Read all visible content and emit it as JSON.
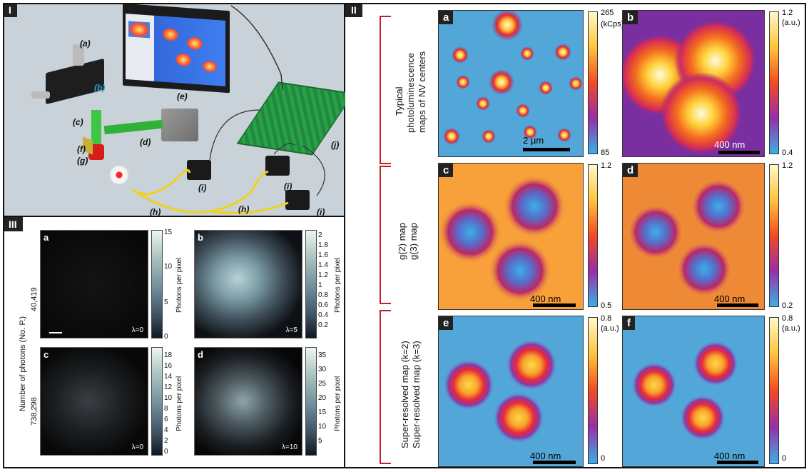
{
  "panels": {
    "p1": {
      "tag": "I",
      "labels": [
        "(a)",
        "(b)",
        "(c)",
        "(d)",
        "(e)",
        "(f)",
        "(g)",
        "(h)",
        "(h)",
        "(i)",
        "(i)",
        "(i)",
        "(j)"
      ]
    },
    "p2": {
      "tag": "II",
      "row_labels": {
        "r1": [
          "Typical",
          "photoluminescence",
          "maps of NV centers"
        ],
        "r2": [
          "g(2) map",
          "g(3) map"
        ],
        "r3": [
          "Super-resolved map (k=2)",
          "Super-resolved map (k=3)"
        ]
      },
      "tiles": {
        "a": {
          "letter": "a",
          "scale": "2 μm",
          "cb_top": "265",
          "cb_unit": "(kCps)",
          "cb_bottom": "85"
        },
        "b": {
          "letter": "b",
          "scale": "400 nm",
          "cb_top": "1.2",
          "cb_unit": "(a.u.)",
          "cb_bottom": "0.4"
        },
        "c": {
          "letter": "c",
          "scale": "400 nm",
          "cb_top": "1.2",
          "cb_bottom": "0.5"
        },
        "d": {
          "letter": "d",
          "scale": "400 nm",
          "cb_top": "1.2",
          "cb_bottom": "0.2"
        },
        "e": {
          "letter": "e",
          "scale": "400 nm",
          "cb_top": "0.8",
          "cb_unit": "(a.u.)",
          "cb_bottom": "0"
        },
        "f": {
          "letter": "f",
          "scale": "400 nm",
          "cb_top": "0.8",
          "cb_unit": "(a.u.)",
          "cb_bottom": "0"
        }
      }
    },
    "p3": {
      "tag": "III",
      "ylabel": "Number of photons (No. P.)",
      "rows": [
        "40,419",
        "738,298"
      ],
      "cb_label": "Photons per pixel",
      "tiles": {
        "a": {
          "letter": "a",
          "lambda": "λ=0",
          "ticks": [
            "15",
            "10",
            "5",
            "0"
          ]
        },
        "b": {
          "letter": "b",
          "lambda": "λ=5",
          "ticks": [
            "2",
            "1.8",
            "1.6",
            "1.4",
            "1.2",
            "1",
            "0.8",
            "0.6",
            "0.4",
            "0.2"
          ]
        },
        "c": {
          "letter": "c",
          "lambda": "λ=0",
          "ticks": [
            "18",
            "16",
            "14",
            "12",
            "10",
            "8",
            "6",
            "4",
            "2",
            "0"
          ]
        },
        "d": {
          "letter": "d",
          "lambda": "λ=10",
          "ticks": [
            "35",
            "30",
            "25",
            "20",
            "15",
            "10",
            "5"
          ]
        }
      }
    }
  },
  "colors": {
    "red_bracket": "#c0201f",
    "map_bg": "#52a7d8"
  }
}
